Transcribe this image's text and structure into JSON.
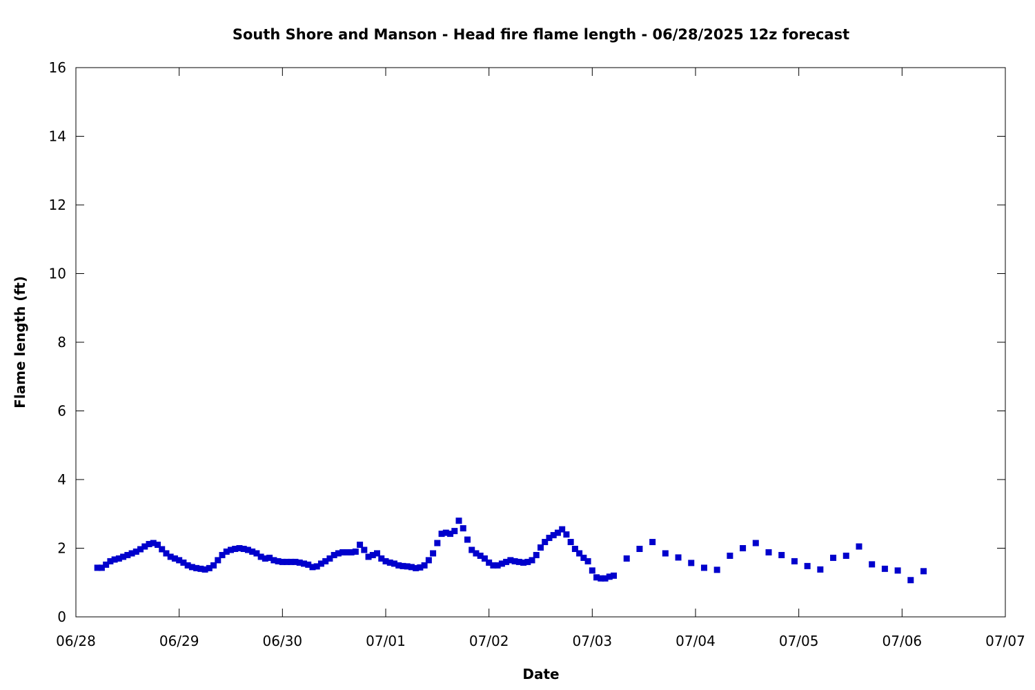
{
  "chart_data": {
    "type": "scatter",
    "title": "South Shore and Manson - Head fire flame length - 06/28/2025 12z forecast",
    "xlabel": "Date",
    "ylabel": "Flame length (ft)",
    "ylim": [
      0,
      16
    ],
    "yticks": [
      0,
      2,
      4,
      6,
      8,
      10,
      12,
      14,
      16
    ],
    "xlim": [
      "06/28 00:00",
      "07/07 00:00"
    ],
    "xticks": [
      "06/28",
      "06/29",
      "06/30",
      "07/01",
      "07/02",
      "07/03",
      "07/04",
      "07/05",
      "07/06",
      "07/07"
    ],
    "grid": false,
    "legend": "none",
    "marker": "square",
    "color": "#0000cc",
    "series": [
      {
        "x": [
          "06/28 05:00",
          "06/28 06:00",
          "06/28 07:00",
          "06/28 08:00",
          "06/28 09:00",
          "06/28 10:00",
          "06/28 11:00",
          "06/28 12:00",
          "06/28 13:00",
          "06/28 14:00",
          "06/28 15:00",
          "06/28 16:00",
          "06/28 17:00",
          "06/28 18:00",
          "06/28 19:00",
          "06/28 20:00",
          "06/28 21:00",
          "06/28 22:00",
          "06/28 23:00",
          "06/29 00:00",
          "06/29 01:00",
          "06/29 02:00",
          "06/29 03:00",
          "06/29 04:00",
          "06/29 05:00",
          "06/29 06:00",
          "06/29 07:00",
          "06/29 08:00",
          "06/29 09:00",
          "06/29 10:00",
          "06/29 11:00",
          "06/29 12:00",
          "06/29 13:00",
          "06/29 14:00",
          "06/29 15:00",
          "06/29 16:00",
          "06/29 17:00",
          "06/29 18:00",
          "06/29 19:00",
          "06/29 20:00",
          "06/29 21:00",
          "06/29 22:00",
          "06/29 23:00",
          "06/30 00:00",
          "06/30 01:00",
          "06/30 02:00",
          "06/30 03:00",
          "06/30 04:00",
          "06/30 05:00",
          "06/30 06:00",
          "06/30 07:00",
          "06/30 08:00",
          "06/30 09:00",
          "06/30 10:00",
          "06/30 11:00",
          "06/30 12:00",
          "06/30 13:00",
          "06/30 14:00",
          "06/30 15:00",
          "06/30 16:00",
          "06/30 17:00",
          "06/30 18:00",
          "06/30 19:00",
          "06/30 20:00",
          "06/30 21:00",
          "06/30 22:00",
          "06/30 23:00",
          "07/01 00:00",
          "07/01 01:00",
          "07/01 02:00",
          "07/01 03:00",
          "07/01 04:00",
          "07/01 05:00",
          "07/01 06:00",
          "07/01 07:00",
          "07/01 08:00",
          "07/01 09:00",
          "07/01 10:00",
          "07/01 11:00",
          "07/01 12:00",
          "07/01 13:00",
          "07/01 14:00",
          "07/01 15:00",
          "07/01 16:00",
          "07/01 17:00",
          "07/01 18:00",
          "07/01 19:00",
          "07/01 20:00",
          "07/01 21:00",
          "07/01 22:00",
          "07/01 23:00",
          "07/02 00:00",
          "07/02 01:00",
          "07/02 02:00",
          "07/02 03:00",
          "07/02 04:00",
          "07/02 05:00",
          "07/02 06:00",
          "07/02 07:00",
          "07/02 08:00",
          "07/02 09:00",
          "07/02 10:00",
          "07/02 11:00",
          "07/02 12:00",
          "07/02 13:00",
          "07/02 14:00",
          "07/02 15:00",
          "07/02 16:00",
          "07/02 17:00",
          "07/02 18:00",
          "07/02 19:00",
          "07/02 20:00",
          "07/02 21:00",
          "07/02 22:00",
          "07/02 23:00",
          "07/03 00:00",
          "07/03 01:00",
          "07/03 02:00",
          "07/03 03:00",
          "07/03 04:00",
          "07/03 05:00",
          "07/03 08:00",
          "07/03 11:00",
          "07/03 14:00",
          "07/03 17:00",
          "07/03 20:00",
          "07/03 23:00",
          "07/04 02:00",
          "07/04 05:00",
          "07/04 08:00",
          "07/04 11:00",
          "07/04 14:00",
          "07/04 17:00",
          "07/04 20:00",
          "07/04 23:00",
          "07/05 02:00",
          "07/05 05:00",
          "07/05 08:00",
          "07/05 11:00",
          "07/05 14:00",
          "07/05 17:00",
          "07/05 20:00",
          "07/05 23:00",
          "07/06 02:00",
          "07/06 05:00"
        ],
        "y": [
          1.43,
          1.43,
          1.52,
          1.62,
          1.67,
          1.7,
          1.75,
          1.8,
          1.85,
          1.9,
          1.97,
          2.05,
          2.12,
          2.15,
          2.1,
          1.97,
          1.85,
          1.75,
          1.7,
          1.65,
          1.58,
          1.5,
          1.45,
          1.42,
          1.4,
          1.38,
          1.42,
          1.5,
          1.65,
          1.8,
          1.9,
          1.95,
          1.98,
          2.0,
          1.98,
          1.95,
          1.9,
          1.85,
          1.75,
          1.7,
          1.72,
          1.65,
          1.62,
          1.6,
          1.6,
          1.6,
          1.6,
          1.58,
          1.55,
          1.52,
          1.45,
          1.47,
          1.55,
          1.62,
          1.7,
          1.8,
          1.85,
          1.88,
          1.88,
          1.88,
          1.9,
          2.1,
          1.95,
          1.75,
          1.8,
          1.85,
          1.7,
          1.62,
          1.58,
          1.55,
          1.5,
          1.48,
          1.47,
          1.45,
          1.42,
          1.44,
          1.5,
          1.65,
          1.85,
          2.15,
          2.42,
          2.45,
          2.42,
          2.5,
          2.8,
          2.58,
          2.25,
          1.95,
          1.85,
          1.78,
          1.7,
          1.58,
          1.5,
          1.5,
          1.55,
          1.6,
          1.65,
          1.62,
          1.6,
          1.58,
          1.6,
          1.65,
          1.8,
          2.02,
          2.18,
          2.3,
          2.38,
          2.45,
          2.55,
          2.4,
          2.18,
          1.98,
          1.85,
          1.72,
          1.62,
          1.35,
          1.15,
          1.12,
          1.12,
          1.17,
          1.2,
          1.7,
          1.98,
          2.18,
          1.85,
          1.73,
          1.57,
          1.43,
          1.37,
          1.78,
          2.0,
          2.15,
          1.88,
          1.8,
          1.62,
          1.48,
          1.38,
          1.72,
          1.78,
          2.05,
          1.53,
          1.4,
          1.35,
          1.07,
          1.33
        ]
      }
    ]
  }
}
